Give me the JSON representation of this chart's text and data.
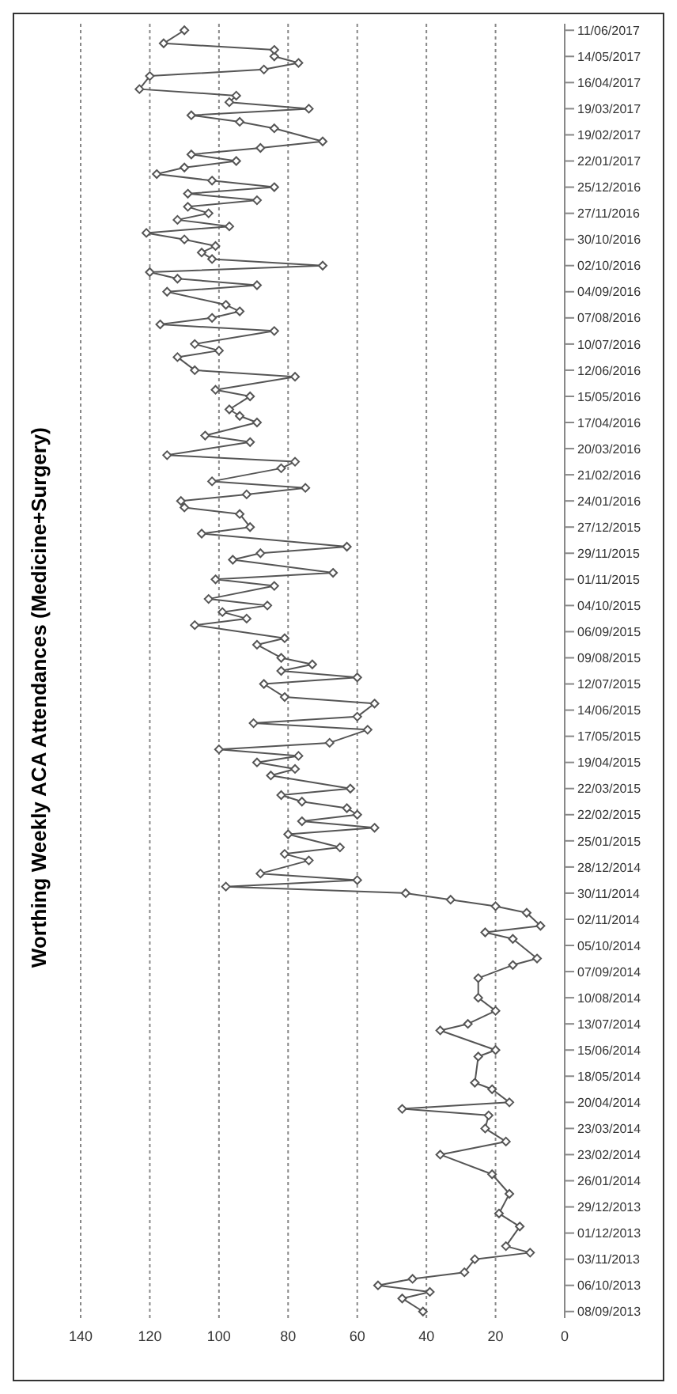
{
  "chart_data": {
    "type": "line",
    "title": "Worthing Weekly ACA Attendances (Medicine+Surgery)",
    "x": [
      "2013-09-08",
      "2013-09-22",
      "2013-09-29",
      "2013-10-06",
      "2013-10-13",
      "2013-10-20",
      "2013-11-03",
      "2013-11-10",
      "2013-11-17",
      "2013-12-08",
      "2013-12-22",
      "2014-01-12",
      "2014-02-02",
      "2014-02-23",
      "2014-03-09",
      "2014-03-23",
      "2014-04-06",
      "2014-04-13",
      "2014-04-20",
      "2014-05-04",
      "2014-05-11",
      "2014-06-08",
      "2014-06-15",
      "2014-07-06",
      "2014-07-13",
      "2014-07-27",
      "2014-08-10",
      "2014-08-31",
      "2014-09-14",
      "2014-09-21",
      "2014-10-12",
      "2014-10-19",
      "2014-10-26",
      "2014-11-09",
      "2014-11-16",
      "2014-11-23",
      "2014-11-30",
      "2014-12-07",
      "2014-12-14",
      "2014-12-21",
      "2015-01-04",
      "2015-01-11",
      "2015-01-18",
      "2015-02-01",
      "2015-02-08",
      "2015-02-15",
      "2015-02-22",
      "2015-03-01",
      "2015-03-08",
      "2015-03-15",
      "2015-03-22",
      "2015-04-05",
      "2015-04-12",
      "2015-04-19",
      "2015-04-26",
      "2015-05-03",
      "2015-05-10",
      "2015-05-24",
      "2015-05-31",
      "2015-06-07",
      "2015-06-21",
      "2015-06-28",
      "2015-07-12",
      "2015-07-19",
      "2015-07-26",
      "2015-08-02",
      "2015-08-09",
      "2015-08-23",
      "2015-08-30",
      "2015-09-13",
      "2015-09-20",
      "2015-09-27",
      "2015-10-04",
      "2015-10-11",
      "2015-10-25",
      "2015-11-01",
      "2015-11-08",
      "2015-11-22",
      "2015-11-29",
      "2015-12-06",
      "2015-12-20",
      "2015-12-27",
      "2016-01-10",
      "2016-01-17",
      "2016-01-24",
      "2016-01-31",
      "2016-02-07",
      "2016-02-14",
      "2016-02-28",
      "2016-03-06",
      "2016-03-13",
      "2016-03-27",
      "2016-04-03",
      "2016-04-17",
      "2016-04-24",
      "2016-05-01",
      "2016-05-15",
      "2016-05-22",
      "2016-06-05",
      "2016-06-12",
      "2016-06-26",
      "2016-07-03",
      "2016-07-10",
      "2016-07-24",
      "2016-07-31",
      "2016-08-07",
      "2016-08-14",
      "2016-08-21",
      "2016-09-04",
      "2016-09-11",
      "2016-09-18",
      "2016-09-25",
      "2016-10-02",
      "2016-10-09",
      "2016-10-16",
      "2016-10-23",
      "2016-10-30",
      "2016-11-06",
      "2016-11-13",
      "2016-11-20",
      "2016-11-27",
      "2016-12-04",
      "2016-12-11",
      "2016-12-18",
      "2016-12-25",
      "2017-01-01",
      "2017-01-08",
      "2017-01-15",
      "2017-01-22",
      "2017-01-29",
      "2017-02-05",
      "2017-02-12",
      "2017-02-26",
      "2017-03-05",
      "2017-03-12",
      "2017-03-19",
      "2017-03-26",
      "2017-04-02",
      "2017-04-09",
      "2017-04-23",
      "2017-04-30",
      "2017-05-07",
      "2017-05-14",
      "2017-05-21",
      "2017-05-28",
      "2017-06-11"
    ],
    "series": [
      {
        "color": "#555555",
        "values": [
          41,
          47,
          39,
          54,
          44,
          29,
          26,
          10,
          17,
          13,
          19,
          16,
          21,
          36,
          17,
          23,
          22,
          47,
          16,
          21,
          26,
          25,
          20,
          36,
          28,
          20,
          25,
          25,
          15,
          8,
          15,
          23,
          7,
          11,
          20,
          33,
          46,
          98,
          60,
          88,
          74,
          81,
          65,
          80,
          55,
          76,
          60,
          63,
          76,
          82,
          62,
          85,
          78,
          89,
          77,
          100,
          68,
          57,
          90,
          60,
          55,
          81,
          87,
          60,
          82,
          73,
          82,
          89,
          81,
          107,
          92,
          99,
          86,
          103,
          84,
          101,
          67,
          96,
          88,
          63,
          105,
          91,
          94,
          110,
          111,
          92,
          75,
          102,
          82,
          78,
          115,
          91,
          104,
          89,
          94,
          97,
          91,
          101,
          78,
          107,
          112,
          100,
          107,
          84,
          117,
          102,
          94,
          98,
          115,
          89,
          112,
          120,
          70,
          102,
          105,
          101,
          110,
          121,
          97,
          112,
          103,
          109,
          89,
          109,
          84,
          102,
          118,
          110,
          95,
          108,
          88,
          70,
          84,
          94,
          108,
          74,
          97,
          95,
          123,
          120,
          87,
          77,
          84,
          84,
          116,
          110
        ]
      }
    ],
    "orientation": "horizontal",
    "xlim": [
      140,
      0
    ],
    "xticks": [
      0,
      20,
      40,
      60,
      80,
      100,
      120,
      140
    ],
    "ylim": [
      "2013-09-01",
      "2017-06-18"
    ],
    "yticks": [
      {
        "value": "2013-09-08",
        "label": "08/09/2013"
      },
      {
        "value": "2013-10-06",
        "label": "06/10/2013"
      },
      {
        "value": "2013-11-03",
        "label": "03/11/2013"
      },
      {
        "value": "2013-12-01",
        "label": "01/12/2013"
      },
      {
        "value": "2013-12-29",
        "label": "29/12/2013"
      },
      {
        "value": "2014-01-26",
        "label": "26/01/2014"
      },
      {
        "value": "2014-02-23",
        "label": "23/02/2014"
      },
      {
        "value": "2014-03-23",
        "label": "23/03/2014"
      },
      {
        "value": "2014-04-20",
        "label": "20/04/2014"
      },
      {
        "value": "2014-05-18",
        "label": "18/05/2014"
      },
      {
        "value": "2014-06-15",
        "label": "15/06/2014"
      },
      {
        "value": "2014-07-13",
        "label": "13/07/2014"
      },
      {
        "value": "2014-08-10",
        "label": "10/08/2014"
      },
      {
        "value": "2014-09-07",
        "label": "07/09/2014"
      },
      {
        "value": "2014-10-05",
        "label": "05/10/2014"
      },
      {
        "value": "2014-11-02",
        "label": "02/11/2014"
      },
      {
        "value": "2014-11-30",
        "label": "30/11/2014"
      },
      {
        "value": "2014-12-28",
        "label": "28/12/2014"
      },
      {
        "value": "2015-01-25",
        "label": "25/01/2015"
      },
      {
        "value": "2015-02-22",
        "label": "22/02/2015"
      },
      {
        "value": "2015-03-22",
        "label": "22/03/2015"
      },
      {
        "value": "2015-04-19",
        "label": "19/04/2015"
      },
      {
        "value": "2015-05-17",
        "label": "17/05/2015"
      },
      {
        "value": "2015-06-14",
        "label": "14/06/2015"
      },
      {
        "value": "2015-07-12",
        "label": "12/07/2015"
      },
      {
        "value": "2015-08-09",
        "label": "09/08/2015"
      },
      {
        "value": "2015-09-06",
        "label": "06/09/2015"
      },
      {
        "value": "2015-10-04",
        "label": "04/10/2015"
      },
      {
        "value": "2015-11-01",
        "label": "01/11/2015"
      },
      {
        "value": "2015-11-29",
        "label": "29/11/2015"
      },
      {
        "value": "2015-12-27",
        "label": "27/12/2015"
      },
      {
        "value": "2016-01-24",
        "label": "24/01/2016"
      },
      {
        "value": "2016-02-21",
        "label": "21/02/2016"
      },
      {
        "value": "2016-03-20",
        "label": "20/03/2016"
      },
      {
        "value": "2016-04-17",
        "label": "17/04/2016"
      },
      {
        "value": "2016-05-15",
        "label": "15/05/2016"
      },
      {
        "value": "2016-06-12",
        "label": "12/06/2016"
      },
      {
        "value": "2016-07-10",
        "label": "10/07/2016"
      },
      {
        "value": "2016-08-07",
        "label": "07/08/2016"
      },
      {
        "value": "2016-09-04",
        "label": "04/09/2016"
      },
      {
        "value": "2016-10-02",
        "label": "02/10/2016"
      },
      {
        "value": "2016-10-30",
        "label": "30/10/2016"
      },
      {
        "value": "2016-11-27",
        "label": "27/11/2016"
      },
      {
        "value": "2016-12-25",
        "label": "25/12/2016"
      },
      {
        "value": "2017-01-22",
        "label": "22/01/2017"
      },
      {
        "value": "2017-02-19",
        "label": "19/02/2017"
      },
      {
        "value": "2017-03-19",
        "label": "19/03/2017"
      },
      {
        "value": "2017-04-16",
        "label": "16/04/2017"
      },
      {
        "value": "2017-05-14",
        "label": "14/05/2017"
      },
      {
        "value": "2017-06-11",
        "label": "11/06/2017"
      }
    ],
    "grid": "x",
    "marker": "diamond",
    "line_style": "solid",
    "legend": false
  }
}
